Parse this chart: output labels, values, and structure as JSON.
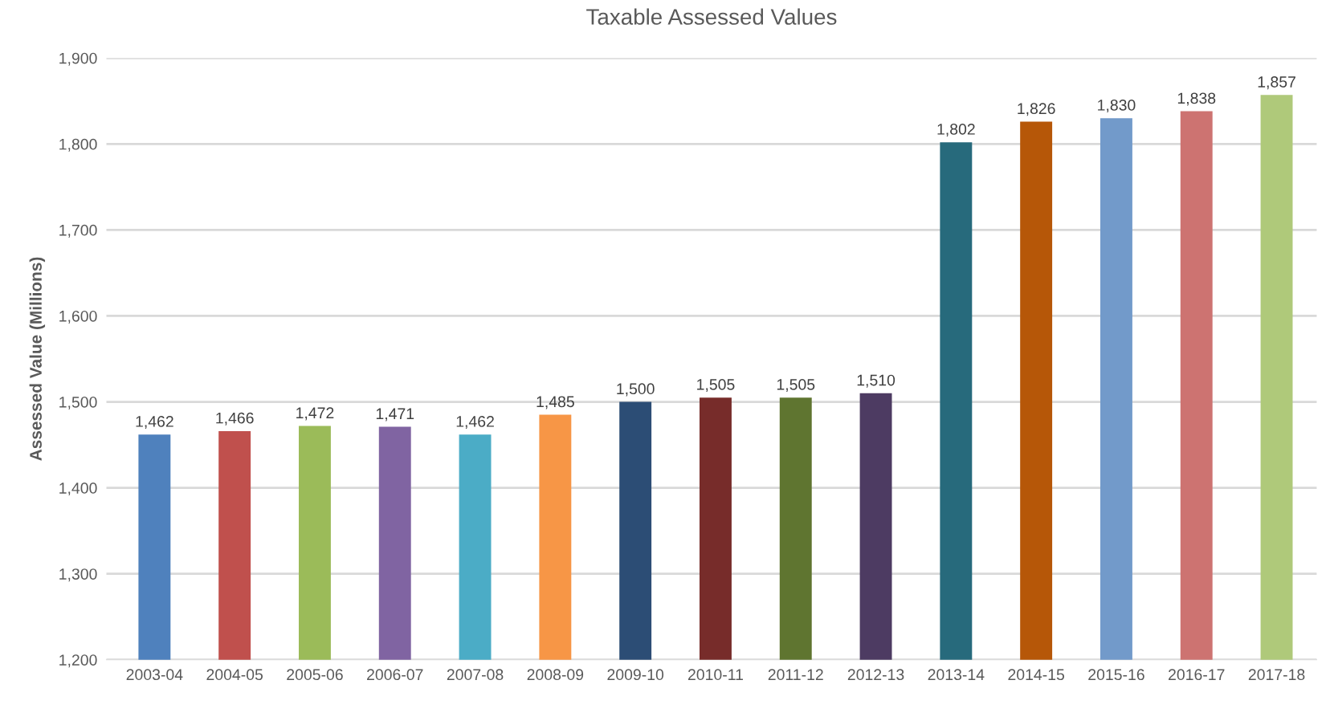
{
  "chart_data": {
    "type": "bar",
    "title": "Taxable Assessed Values",
    "ylabel": "Assessed Value (Millions)",
    "categories": [
      "2003-04",
      "2004-05",
      "2005-06",
      "2006-07",
      "2007-08",
      "2008-09",
      "2009-10",
      "2010-11",
      "2011-12",
      "2012-13",
      "2013-14",
      "2014-15",
      "2015-16",
      "2016-17",
      "2017-18"
    ],
    "values": [
      1462,
      1466,
      1472,
      1471,
      1462,
      1485,
      1500,
      1505,
      1505,
      1510,
      1802,
      1826,
      1830,
      1838,
      1857
    ],
    "value_labels": [
      "1,462",
      "1,466",
      "1,472",
      "1,471",
      "1,462",
      "1,485",
      "1,500",
      "1,505",
      "1,505",
      "1,510",
      "1,802",
      "1,826",
      "1,830",
      "1,838",
      "1,857"
    ],
    "colors": [
      "#4f81bd",
      "#c0504d",
      "#9bbb59",
      "#8064a2",
      "#4bacc6",
      "#f79646",
      "#2c4d75",
      "#772c2a",
      "#5f7530",
      "#4d3b62",
      "#276a7c",
      "#b65708",
      "#729aca",
      "#cd7371",
      "#afc97a"
    ],
    "ylim": [
      1200,
      1900
    ],
    "yticks": [
      {
        "value": 1200,
        "label": "1,200"
      },
      {
        "value": 1300,
        "label": "1,300"
      },
      {
        "value": 1400,
        "label": "1,400"
      },
      {
        "value": 1500,
        "label": "1,500"
      },
      {
        "value": 1600,
        "label": "1,600"
      },
      {
        "value": 1700,
        "label": "1,700"
      },
      {
        "value": 1800,
        "label": "1,800"
      },
      {
        "value": 1900,
        "label": "1,900"
      }
    ],
    "grid": "y"
  }
}
